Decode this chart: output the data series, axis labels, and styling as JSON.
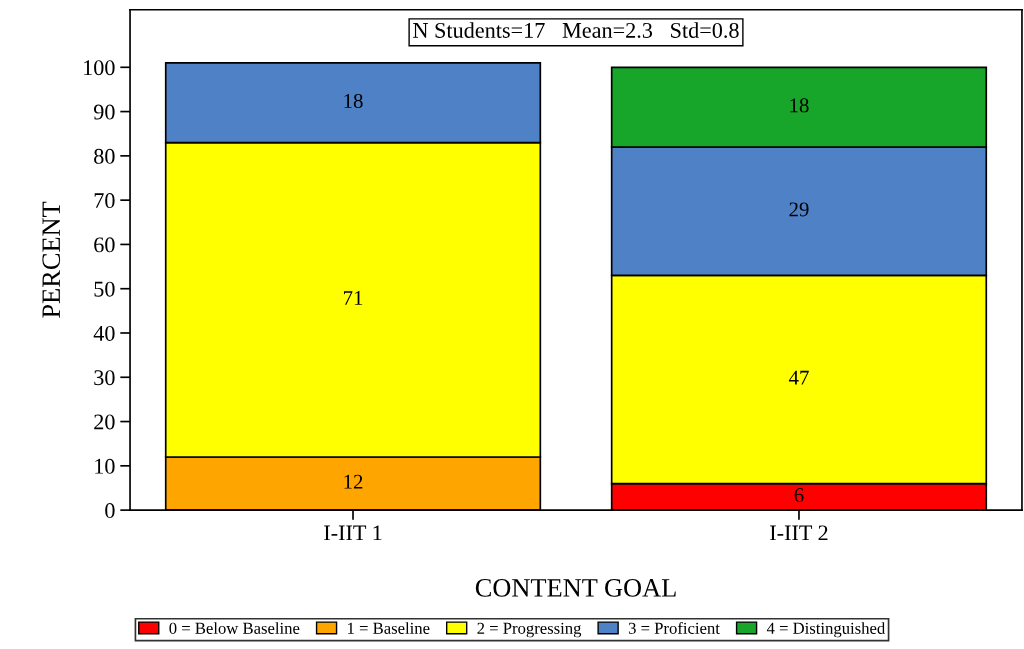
{
  "chart_data": {
    "type": "bar",
    "stacked": true,
    "xlabel": "CONTENT GOAL",
    "ylabel": "PERCENT",
    "annotations": [
      "N Students=17   Mean=2.3   Std=0.8"
    ],
    "categories": [
      "I-IIT 1",
      "I-IIT 2"
    ],
    "series": [
      {
        "name": "0 = Below Baseline",
        "color": "#ff0000",
        "values": [
          null,
          6
        ]
      },
      {
        "name": "1 = Baseline",
        "color": "#ffa500",
        "values": [
          12,
          null
        ]
      },
      {
        "name": "2 = Progressing",
        "color": "#ffff00",
        "values": [
          71,
          47
        ]
      },
      {
        "name": "3 = Proficient",
        "color": "#4f81c7",
        "values": [
          18,
          29
        ]
      },
      {
        "name": "4 = Distinguished",
        "color": "#17a52a",
        "values": [
          null,
          18
        ]
      }
    ],
    "ylim": [
      0,
      113
    ],
    "yticks": [
      0,
      10,
      20,
      30,
      40,
      50,
      60,
      70,
      80,
      90,
      100
    ],
    "data_labels": true,
    "legend": "bottom",
    "grid": false
  }
}
